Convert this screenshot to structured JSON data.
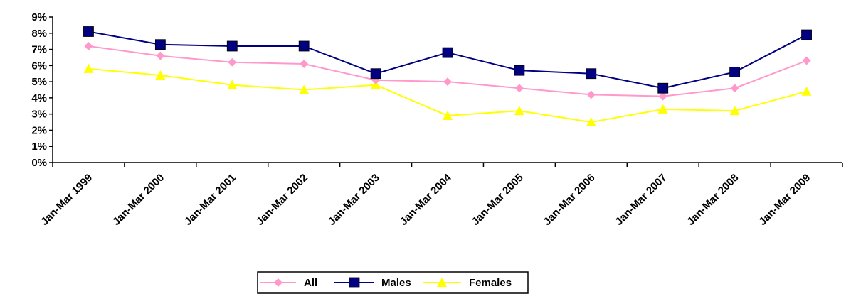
{
  "chart_data": {
    "type": "line",
    "title": "",
    "xlabel": "",
    "ylabel": "",
    "categories": [
      "Jan-Mar 1999",
      "Jan-Mar 2000",
      "Jan-Mar 2001",
      "Jan-Mar 2002",
      "Jan-Mar 2003",
      "Jan-Mar 2004",
      "Jan-Mar 2005",
      "Jan-Mar 2006",
      "Jan-Mar 2007",
      "Jan-Mar 2008",
      "Jan-Mar 2009"
    ],
    "ylim": [
      0,
      9
    ],
    "y_ticks": [
      "0%",
      "1%",
      "2%",
      "3%",
      "4%",
      "5%",
      "6%",
      "7%",
      "8%",
      "9%"
    ],
    "grid": false,
    "legend_position": "bottom",
    "series": [
      {
        "name": "All",
        "color": "#ff99cc",
        "marker": "diamond",
        "values": [
          7.2,
          6.6,
          6.2,
          6.1,
          5.1,
          5.0,
          4.6,
          4.2,
          4.1,
          4.6,
          6.3
        ]
      },
      {
        "name": "Males",
        "color": "#000080",
        "marker": "square",
        "values": [
          8.1,
          7.3,
          7.2,
          7.2,
          5.5,
          6.8,
          5.7,
          5.5,
          4.6,
          5.6,
          7.9
        ]
      },
      {
        "name": "Females",
        "color": "#ffff00",
        "marker": "triangle",
        "values": [
          5.8,
          5.4,
          4.8,
          4.5,
          4.8,
          2.9,
          3.2,
          2.5,
          3.3,
          3.2,
          4.4
        ]
      }
    ]
  }
}
